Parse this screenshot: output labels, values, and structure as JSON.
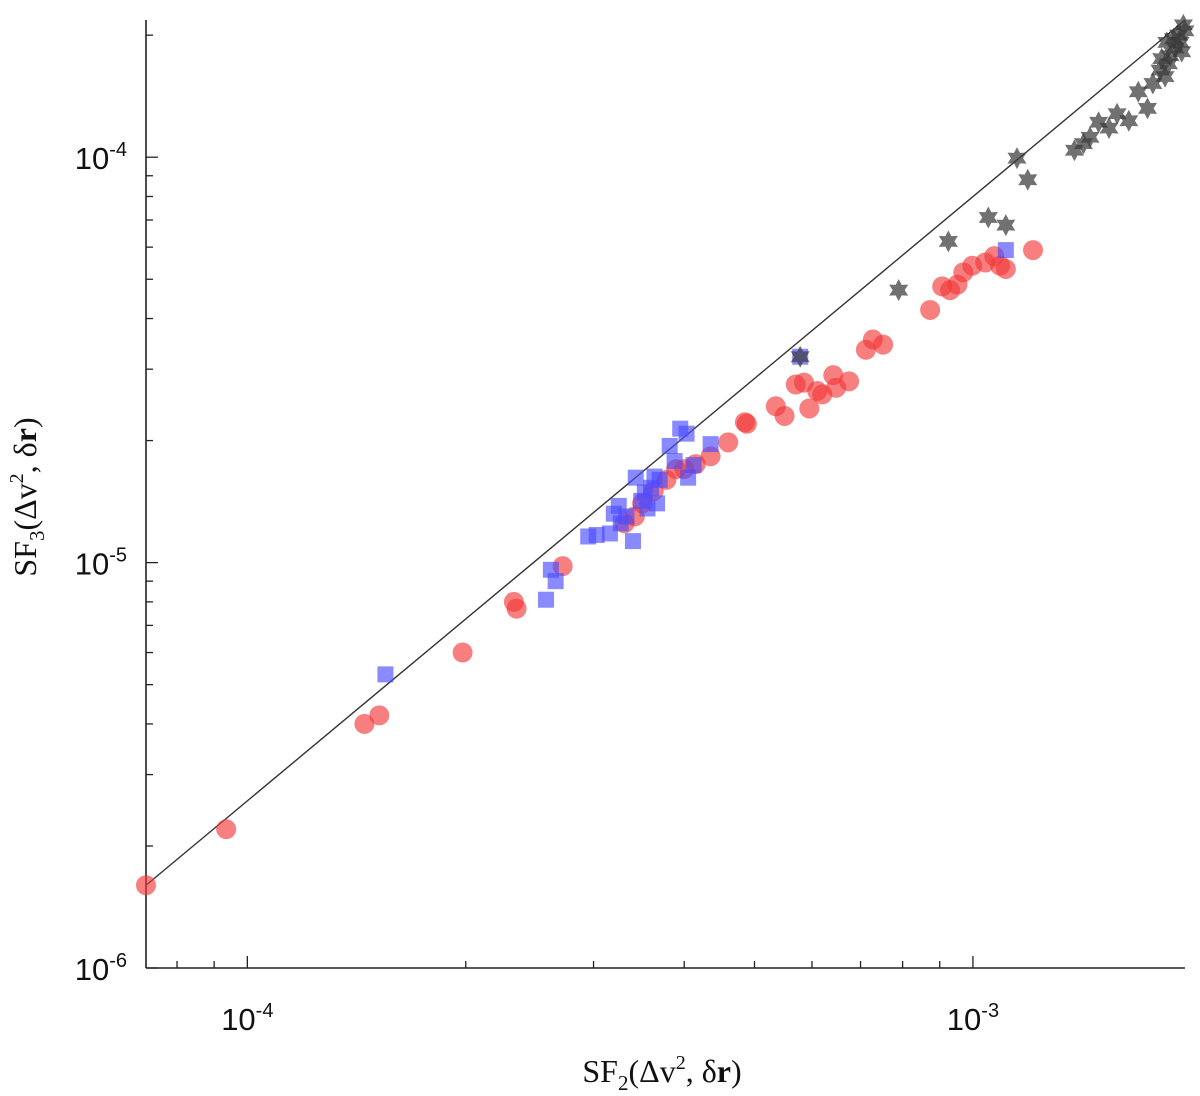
{
  "chart_data": {
    "type": "scatter",
    "x_scale": "log",
    "y_scale": "log",
    "xlim": [
      7.25e-05,
      0.00196
    ],
    "ylim": [
      1e-06,
      0.000218
    ],
    "grid": false,
    "legend": "none",
    "xlabel": {
      "pre": "SF",
      "sub": "2",
      "open": "(Δv",
      "sup": "2",
      "mid": ", δ",
      "bold": "r",
      "close": ")"
    },
    "ylabel": {
      "pre": "SF",
      "sub": "3",
      "open": "(Δv",
      "sup": "2",
      "mid": ", δ",
      "bold": "r",
      "close": ")"
    },
    "x_ticks": [
      {
        "value": 0.0001,
        "base": "10",
        "exp": "-4"
      },
      {
        "value": 0.001,
        "base": "10",
        "exp": "-3"
      }
    ],
    "y_ticks": [
      {
        "value": 1e-06,
        "base": "10",
        "exp": "-6"
      },
      {
        "value": 1e-05,
        "base": "10",
        "exp": "-5"
      },
      {
        "value": 0.0001,
        "base": "10",
        "exp": "-4"
      }
    ],
    "fit_line": {
      "points": [
        [
          7.25e-05,
          1.6e-06
        ],
        [
          0.00196,
          0.000218
        ]
      ],
      "color": "#333333"
    },
    "series": [
      {
        "marker": "circle",
        "color": "#f23a3a",
        "points": [
          [
            7.25e-05,
            1.6e-06
          ],
          [
            9.35e-05,
            2.2e-06
          ],
          [
            0.000145,
            4e-06
          ],
          [
            0.000152,
            4.2e-06
          ],
          [
            0.000198,
            6e-06
          ],
          [
            0.000233,
            8e-06
          ],
          [
            0.000235,
            7.7e-06
          ],
          [
            0.000272,
            9.8e-06
          ],
          [
            0.000331,
            1.25e-05
          ],
          [
            0.000342,
            1.3e-05
          ],
          [
            0.00035,
            1.4e-05
          ],
          [
            0.000363,
            1.5e-05
          ],
          [
            0.000378,
            1.6e-05
          ],
          [
            0.00039,
            1.7e-05
          ],
          [
            0.0004,
            1.7e-05
          ],
          [
            0.000415,
            1.75e-05
          ],
          [
            0.000435,
            1.83e-05
          ],
          [
            0.00046,
            1.98e-05
          ],
          [
            0.000485,
            2.22e-05
          ],
          [
            0.000488,
            2.2e-05
          ],
          [
            0.000535,
            2.43e-05
          ],
          [
            0.00055,
            2.3e-05
          ],
          [
            0.00057,
            2.75e-05
          ],
          [
            0.000585,
            2.78e-05
          ],
          [
            0.000595,
            2.4e-05
          ],
          [
            0.00061,
            2.65e-05
          ],
          [
            0.00062,
            2.6e-05
          ],
          [
            0.000642,
            2.9e-05
          ],
          [
            0.000648,
            2.7e-05
          ],
          [
            0.000675,
            2.8e-05
          ],
          [
            0.000712,
            3.35e-05
          ],
          [
            0.000728,
            3.55e-05
          ],
          [
            0.000752,
            3.45e-05
          ],
          [
            0.000873,
            4.2e-05
          ],
          [
            0.000907,
            4.8e-05
          ],
          [
            0.00093,
            4.7e-05
          ],
          [
            0.000952,
            4.85e-05
          ],
          [
            0.00097,
            5.2e-05
          ],
          [
            0.000998,
            5.4e-05
          ],
          [
            0.00104,
            5.5e-05
          ],
          [
            0.00107,
            5.7e-05
          ],
          [
            0.00109,
            5.4e-05
          ],
          [
            0.00111,
            5.3e-05
          ],
          [
            0.00121,
            5.9e-05
          ]
        ]
      },
      {
        "marker": "square",
        "color": "#4b4bff",
        "points": [
          [
            0.000155,
            5.3e-06
          ],
          [
            0.000258,
            8.1e-06
          ],
          [
            0.000262,
            9.6e-06
          ],
          [
            0.000266,
            9e-06
          ],
          [
            0.000295,
            1.16e-05
          ],
          [
            0.000303,
            1.17e-05
          ],
          [
            0.000316,
            1.18e-05
          ],
          [
            0.00032,
            1.32e-05
          ],
          [
            0.000325,
            1.38e-05
          ],
          [
            0.000327,
            1.25e-05
          ],
          [
            0.000333,
            1.3e-05
          ],
          [
            0.00034,
            1.13e-05
          ],
          [
            0.000343,
            1.62e-05
          ],
          [
            0.000349,
            1.42e-05
          ],
          [
            0.000353,
            1.49e-05
          ],
          [
            0.000356,
            1.36e-05
          ],
          [
            0.00036,
            1.53e-05
          ],
          [
            0.000364,
            1.63e-05
          ],
          [
            0.000367,
            1.4e-05
          ],
          [
            0.00037,
            1.6e-05
          ],
          [
            0.000382,
            1.94e-05
          ],
          [
            0.000388,
            1.78e-05
          ],
          [
            0.000395,
            2.14e-05
          ],
          [
            0.000403,
            2.08e-05
          ],
          [
            0.000405,
            1.62e-05
          ],
          [
            0.000412,
            1.74e-05
          ],
          [
            0.000435,
            1.96e-05
          ],
          [
            0.000578,
            3.22e-05
          ],
          [
            0.00111,
            5.9e-05
          ]
        ]
      },
      {
        "marker": "star",
        "color": "#3a3a3a",
        "points": [
          [
            0.000578,
            3.22e-05
          ],
          [
            0.00079,
            4.7e-05
          ],
          [
            0.000925,
            6.2e-05
          ],
          [
            0.00105,
            7.1e-05
          ],
          [
            0.00111,
            6.8e-05
          ],
          [
            0.00115,
            9.95e-05
          ],
          [
            0.00119,
            8.8e-05
          ],
          [
            0.00138,
            0.000104
          ],
          [
            0.00142,
            0.000108
          ],
          [
            0.00145,
            0.000112
          ],
          [
            0.00149,
            0.000122
          ],
          [
            0.00154,
            0.000118
          ],
          [
            0.00158,
            0.000128
          ],
          [
            0.00164,
            0.000123
          ],
          [
            0.00169,
            0.000145
          ],
          [
            0.00174,
            0.000132
          ],
          [
            0.00177,
            0.000152
          ],
          [
            0.00181,
            0.000164
          ],
          [
            0.00184,
            0.000158
          ],
          [
            0.00186,
            0.00017
          ],
          [
            0.00187,
            0.000178
          ],
          [
            0.00189,
            0.000196
          ],
          [
            0.0019,
            0.000186
          ],
          [
            0.00192,
            0.0002
          ],
          [
            0.00193,
            0.000192
          ],
          [
            0.00194,
            0.000182
          ],
          [
            0.00195,
            0.000212
          ],
          [
            0.00196,
            0.000205
          ],
          [
            0.00185,
            0.000192
          ],
          [
            0.00182,
            0.000175
          ]
        ]
      }
    ]
  }
}
